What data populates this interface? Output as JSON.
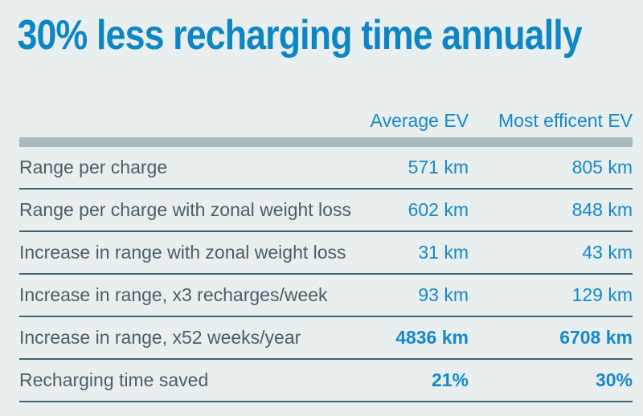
{
  "title": "30% less recharging time annually",
  "chart_data": {
    "type": "table",
    "title": "30% less recharging time annually",
    "columns": [
      "",
      "Average EV",
      "Most efficent EV"
    ],
    "rows": [
      [
        "Range per charge",
        "571 km",
        "805 km"
      ],
      [
        "Range per charge with zonal weight loss",
        "602 km",
        "848 km"
      ],
      [
        "Increase in range with zonal weight loss",
        "31 km",
        "43 km"
      ],
      [
        "Increase in range, x3 recharges/week",
        "93 km",
        "129 km"
      ],
      [
        "Increase in range, x52 weeks/year",
        "4836 km",
        "6708 km"
      ],
      [
        "Recharging time saved",
        "21%",
        "30%"
      ]
    ],
    "bold_rows": [
      4,
      5
    ],
    "units": "km and percent",
    "layout": "row labels left, two right-aligned value columns, thick gray rule under header, thin dark rules between rows"
  },
  "colors": {
    "bg": "#E9EFEF",
    "accent": "#0E86C6",
    "value": "#1489CB",
    "label": "#4A5D6B",
    "divider": "#3E6272",
    "bar": "#A9B9C0"
  }
}
